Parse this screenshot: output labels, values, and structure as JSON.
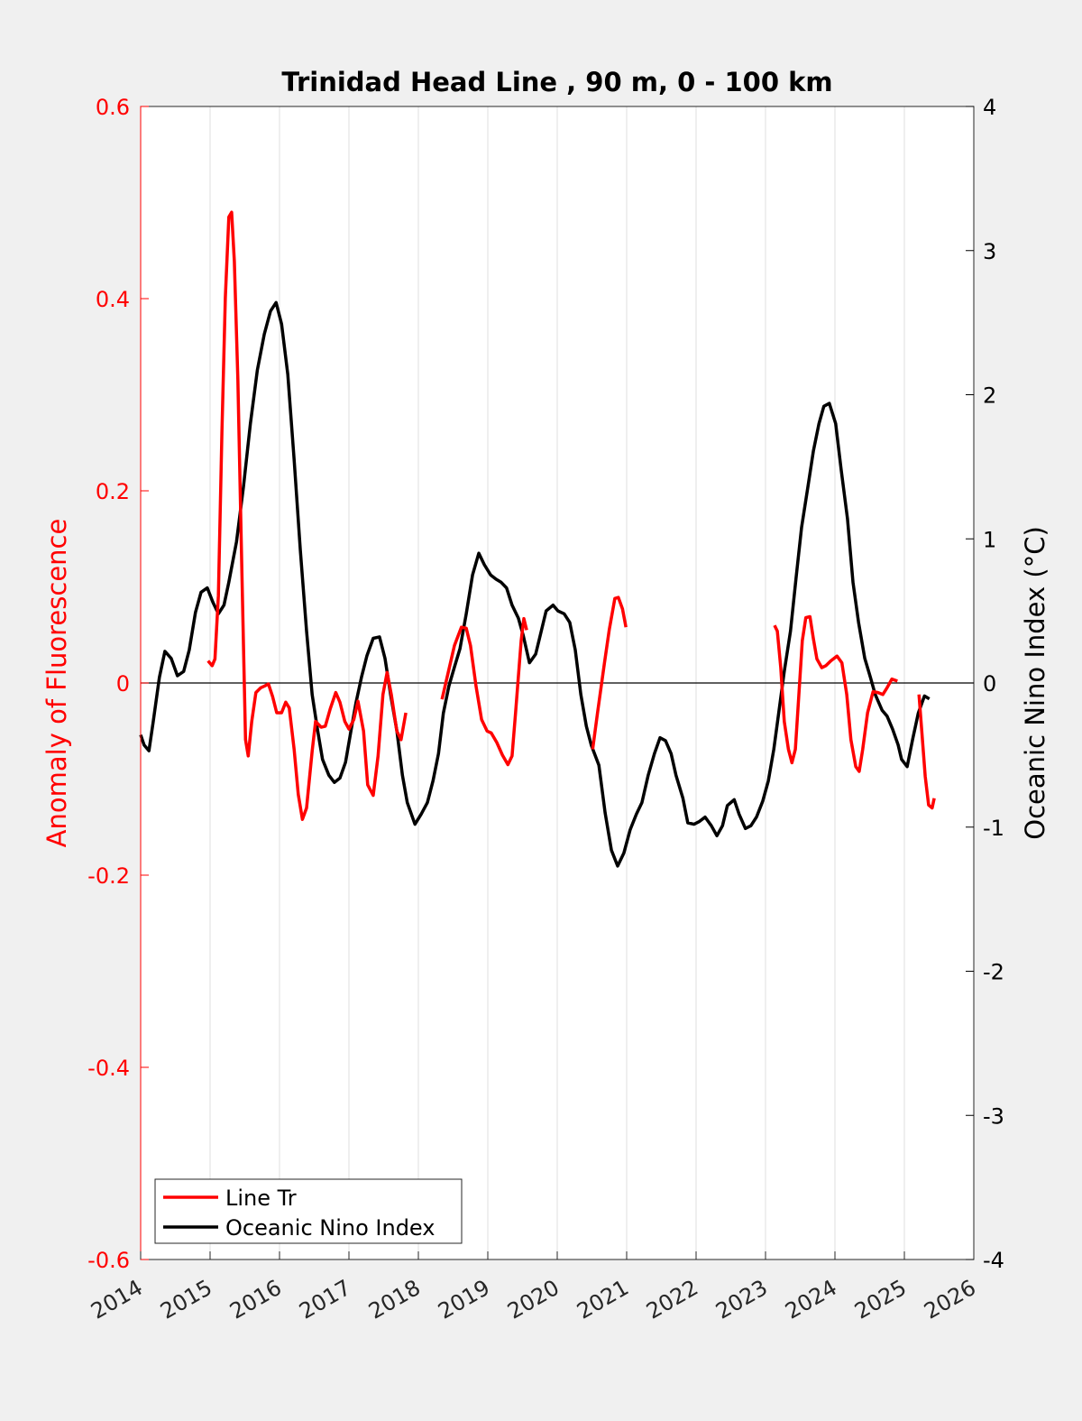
{
  "chart_data": {
    "type": "line",
    "title": "Trinidad Head Line , 90 m, 0 - 100 km",
    "xlabel": "",
    "ylabel_left": "Anomaly of Fluorescence",
    "ylabel_right": "Oceanic Nino Index (°C)",
    "xlim": [
      2014,
      2026
    ],
    "ylim_left": [
      -0.6,
      0.6
    ],
    "ylim_right": [
      -4,
      4
    ],
    "x_ticks": [
      "2014",
      "2015",
      "2016",
      "2017",
      "2018",
      "2019",
      "2020",
      "2021",
      "2022",
      "2023",
      "2024",
      "2025",
      "2026"
    ],
    "y_ticks_left": [
      "0.6",
      "0.4",
      "0.2",
      "0",
      "-0.2",
      "-0.4",
      "-0.6"
    ],
    "y_ticks_right": [
      "4",
      "3",
      "2",
      "1",
      "0",
      "-1",
      "-2",
      "-3",
      "-4"
    ],
    "grid": "vertical",
    "legend_position": "bottom-left",
    "colors": {
      "line_tr": "#ff0000",
      "oni": "#000000",
      "left_axis": "#ff0000",
      "right_axis": "#000000"
    },
    "series": [
      {
        "name": "Line Tr",
        "axis": "left",
        "segments": [
          [
            [
              2014.97,
              0.023
            ],
            [
              2015.03,
              0.018
            ],
            [
              2015.07,
              0.025
            ],
            [
              2015.12,
              0.091
            ],
            [
              2015.17,
              0.26
            ],
            [
              2015.22,
              0.401
            ],
            [
              2015.27,
              0.485
            ],
            [
              2015.31,
              0.49
            ],
            [
              2015.35,
              0.439
            ],
            [
              2015.4,
              0.316
            ],
            [
              2015.46,
              0.11
            ],
            [
              2015.51,
              -0.059
            ],
            [
              2015.55,
              -0.076
            ],
            [
              2015.6,
              -0.04
            ],
            [
              2015.66,
              -0.01
            ],
            [
              2015.73,
              -0.005
            ],
            [
              2015.79,
              -0.003
            ],
            [
              2015.84,
              -0.001
            ],
            [
              2015.9,
              -0.014
            ],
            [
              2015.96,
              -0.031
            ],
            [
              2016.03,
              -0.031
            ],
            [
              2016.09,
              -0.02
            ],
            [
              2016.14,
              -0.026
            ],
            [
              2016.21,
              -0.069
            ],
            [
              2016.27,
              -0.116
            ],
            [
              2016.33,
              -0.142
            ],
            [
              2016.39,
              -0.13
            ],
            [
              2016.47,
              -0.071
            ],
            [
              2016.52,
              -0.04
            ],
            [
              2016.6,
              -0.046
            ],
            [
              2016.66,
              -0.045
            ],
            [
              2016.73,
              -0.027
            ],
            [
              2016.81,
              -0.01
            ],
            [
              2016.87,
              -0.02
            ],
            [
              2016.94,
              -0.04
            ],
            [
              2017.0,
              -0.048
            ],
            [
              2017.07,
              -0.038
            ],
            [
              2017.13,
              -0.019
            ],
            [
              2017.21,
              -0.05
            ],
            [
              2017.27,
              -0.106
            ],
            [
              2017.35,
              -0.117
            ],
            [
              2017.42,
              -0.076
            ],
            [
              2017.49,
              -0.012
            ],
            [
              2017.55,
              0.011
            ],
            [
              2017.61,
              -0.012
            ],
            [
              2017.69,
              -0.05
            ],
            [
              2017.75,
              -0.059
            ],
            [
              2017.82,
              -0.031
            ]
          ],
          [
            [
              2018.34,
              -0.017
            ],
            [
              2018.43,
              0.011
            ],
            [
              2018.52,
              0.039
            ],
            [
              2018.62,
              0.058
            ],
            [
              2018.69,
              0.057
            ],
            [
              2018.75,
              0.039
            ],
            [
              2018.83,
              -0.003
            ],
            [
              2018.91,
              -0.038
            ],
            [
              2018.99,
              -0.05
            ],
            [
              2019.05,
              -0.052
            ],
            [
              2019.13,
              -0.062
            ],
            [
              2019.21,
              -0.075
            ],
            [
              2019.29,
              -0.085
            ],
            [
              2019.35,
              -0.076
            ],
            [
              2019.4,
              -0.031
            ],
            [
              2019.48,
              0.044
            ],
            [
              2019.52,
              0.067
            ],
            [
              2019.56,
              0.055
            ]
          ],
          [
            [
              2020.51,
              -0.069
            ],
            [
              2020.58,
              -0.031
            ],
            [
              2020.68,
              0.021
            ],
            [
              2020.75,
              0.056
            ],
            [
              2020.83,
              0.088
            ],
            [
              2020.88,
              0.089
            ],
            [
              2020.94,
              0.077
            ],
            [
              2020.99,
              0.058
            ]
          ],
          [
            [
              2023.13,
              0.06
            ],
            [
              2023.17,
              0.054
            ],
            [
              2023.22,
              0.016
            ],
            [
              2023.27,
              -0.04
            ],
            [
              2023.33,
              -0.069
            ],
            [
              2023.38,
              -0.083
            ],
            [
              2023.43,
              -0.069
            ],
            [
              2023.48,
              -0.012
            ],
            [
              2023.53,
              0.044
            ],
            [
              2023.58,
              0.068
            ],
            [
              2023.64,
              0.069
            ],
            [
              2023.69,
              0.046
            ],
            [
              2023.74,
              0.025
            ],
            [
              2023.81,
              0.016
            ],
            [
              2023.87,
              0.018
            ],
            [
              2023.94,
              0.023
            ],
            [
              2024.03,
              0.028
            ],
            [
              2024.1,
              0.021
            ],
            [
              2024.17,
              -0.012
            ],
            [
              2024.23,
              -0.059
            ],
            [
              2024.3,
              -0.087
            ],
            [
              2024.35,
              -0.092
            ],
            [
              2024.4,
              -0.069
            ],
            [
              2024.47,
              -0.031
            ],
            [
              2024.55,
              -0.009
            ],
            [
              2024.62,
              -0.01
            ],
            [
              2024.69,
              -0.012
            ],
            [
              2024.75,
              -0.005
            ],
            [
              2024.82,
              0.004
            ],
            [
              2024.9,
              0.002
            ]
          ],
          [
            [
              2025.21,
              -0.012
            ],
            [
              2025.25,
              -0.05
            ],
            [
              2025.3,
              -0.097
            ],
            [
              2025.35,
              -0.127
            ],
            [
              2025.4,
              -0.13
            ],
            [
              2025.43,
              -0.12
            ]
          ]
        ]
      },
      {
        "name": "Oceanic Nino Index",
        "axis": "right",
        "segments": [
          [
            [
              2014.0,
              -0.36
            ],
            [
              2014.05,
              -0.43
            ],
            [
              2014.12,
              -0.47
            ],
            [
              2014.18,
              -0.27
            ],
            [
              2014.27,
              0.04
            ],
            [
              2014.35,
              0.22
            ],
            [
              2014.44,
              0.17
            ],
            [
              2014.53,
              0.05
            ],
            [
              2014.62,
              0.08
            ],
            [
              2014.7,
              0.23
            ],
            [
              2014.79,
              0.49
            ],
            [
              2014.87,
              0.63
            ],
            [
              2014.96,
              0.66
            ],
            [
              2015.04,
              0.56
            ],
            [
              2015.12,
              0.48
            ],
            [
              2015.2,
              0.54
            ],
            [
              2015.27,
              0.7
            ],
            [
              2015.38,
              0.98
            ],
            [
              2015.48,
              1.36
            ],
            [
              2015.58,
              1.8
            ],
            [
              2015.68,
              2.17
            ],
            [
              2015.78,
              2.42
            ],
            [
              2015.87,
              2.58
            ],
            [
              2015.95,
              2.64
            ],
            [
              2016.03,
              2.49
            ],
            [
              2016.12,
              2.14
            ],
            [
              2016.21,
              1.55
            ],
            [
              2016.3,
              0.92
            ],
            [
              2016.39,
              0.36
            ],
            [
              2016.47,
              -0.08
            ],
            [
              2016.55,
              -0.33
            ],
            [
              2016.62,
              -0.53
            ],
            [
              2016.71,
              -0.64
            ],
            [
              2016.79,
              -0.69
            ],
            [
              2016.87,
              -0.66
            ],
            [
              2016.95,
              -0.55
            ],
            [
              2017.03,
              -0.33
            ],
            [
              2017.1,
              -0.14
            ],
            [
              2017.18,
              0.04
            ],
            [
              2017.26,
              0.19
            ],
            [
              2017.35,
              0.31
            ],
            [
              2017.44,
              0.32
            ],
            [
              2017.52,
              0.17
            ],
            [
              2017.6,
              -0.08
            ],
            [
              2017.69,
              -0.33
            ],
            [
              2017.77,
              -0.64
            ],
            [
              2017.84,
              -0.83
            ],
            [
              2017.95,
              -0.98
            ],
            [
              2018.04,
              -0.91
            ],
            [
              2018.13,
              -0.83
            ],
            [
              2018.21,
              -0.68
            ],
            [
              2018.29,
              -0.49
            ],
            [
              2018.36,
              -0.21
            ],
            [
              2018.44,
              -0.02
            ],
            [
              2018.52,
              0.11
            ],
            [
              2018.6,
              0.24
            ],
            [
              2018.69,
              0.48
            ],
            [
              2018.78,
              0.75
            ],
            [
              2018.87,
              0.9
            ],
            [
              2018.95,
              0.82
            ],
            [
              2019.04,
              0.75
            ],
            [
              2019.12,
              0.72
            ],
            [
              2019.19,
              0.7
            ],
            [
              2019.27,
              0.66
            ],
            [
              2019.35,
              0.54
            ],
            [
              2019.44,
              0.45
            ],
            [
              2019.51,
              0.33
            ],
            [
              2019.6,
              0.14
            ],
            [
              2019.69,
              0.2
            ],
            [
              2019.77,
              0.36
            ],
            [
              2019.84,
              0.5
            ],
            [
              2019.94,
              0.54
            ],
            [
              2020.01,
              0.5
            ],
            [
              2020.1,
              0.48
            ],
            [
              2020.18,
              0.42
            ],
            [
              2020.26,
              0.23
            ],
            [
              2020.34,
              -0.08
            ],
            [
              2020.42,
              -0.3
            ],
            [
              2020.49,
              -0.43
            ],
            [
              2020.6,
              -0.57
            ],
            [
              2020.69,
              -0.9
            ],
            [
              2020.78,
              -1.16
            ],
            [
              2020.87,
              -1.27
            ],
            [
              2020.96,
              -1.18
            ],
            [
              2021.05,
              -1.02
            ],
            [
              2021.14,
              -0.91
            ],
            [
              2021.22,
              -0.83
            ],
            [
              2021.31,
              -0.64
            ],
            [
              2021.4,
              -0.49
            ],
            [
              2021.48,
              -0.38
            ],
            [
              2021.56,
              -0.4
            ],
            [
              2021.64,
              -0.49
            ],
            [
              2021.71,
              -0.64
            ],
            [
              2021.81,
              -0.8
            ],
            [
              2021.88,
              -0.97
            ],
            [
              2021.97,
              -0.98
            ],
            [
              2022.05,
              -0.96
            ],
            [
              2022.13,
              -0.93
            ],
            [
              2022.22,
              -0.99
            ],
            [
              2022.3,
              -1.06
            ],
            [
              2022.38,
              -0.99
            ],
            [
              2022.45,
              -0.85
            ],
            [
              2022.55,
              -0.81
            ],
            [
              2022.62,
              -0.91
            ],
            [
              2022.71,
              -1.01
            ],
            [
              2022.79,
              -0.99
            ],
            [
              2022.87,
              -0.93
            ],
            [
              2022.96,
              -0.82
            ],
            [
              2023.04,
              -0.68
            ],
            [
              2023.12,
              -0.46
            ],
            [
              2023.19,
              -0.21
            ],
            [
              2023.27,
              0.08
            ],
            [
              2023.36,
              0.36
            ],
            [
              2023.44,
              0.73
            ],
            [
              2023.52,
              1.08
            ],
            [
              2023.61,
              1.36
            ],
            [
              2023.69,
              1.61
            ],
            [
              2023.77,
              1.8
            ],
            [
              2023.84,
              1.92
            ],
            [
              2023.92,
              1.94
            ],
            [
              2024.01,
              1.8
            ],
            [
              2024.09,
              1.48
            ],
            [
              2024.18,
              1.14
            ],
            [
              2024.26,
              0.7
            ],
            [
              2024.34,
              0.42
            ],
            [
              2024.43,
              0.17
            ],
            [
              2024.51,
              0.04
            ],
            [
              2024.58,
              -0.08
            ],
            [
              2024.68,
              -0.19
            ],
            [
              2024.75,
              -0.23
            ],
            [
              2024.83,
              -0.32
            ],
            [
              2024.91,
              -0.43
            ],
            [
              2024.96,
              -0.53
            ],
            [
              2025.04,
              -0.58
            ],
            [
              2025.12,
              -0.39
            ],
            [
              2025.2,
              -0.21
            ],
            [
              2025.29,
              -0.09
            ],
            [
              2025.36,
              -0.11
            ]
          ]
        ]
      }
    ]
  }
}
